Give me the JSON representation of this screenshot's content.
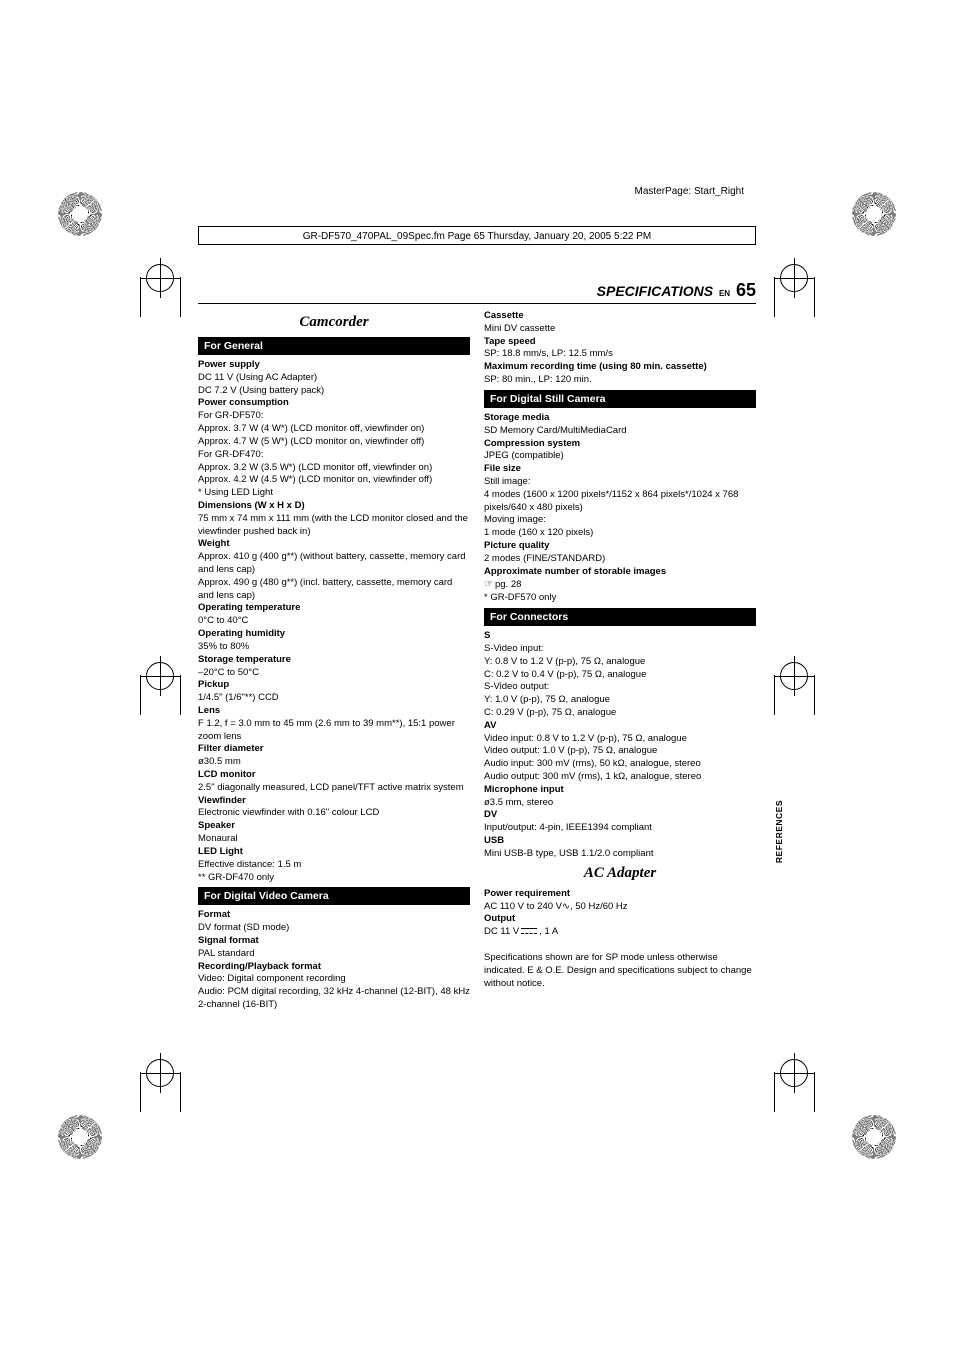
{
  "print_marks": {
    "masterpage_label": "MasterPage: Start_Right",
    "header_line": "GR-DF570_470PAL_09Spec.fm  Page 65  Thursday, January 20, 2005  5:22 PM"
  },
  "running_head": {
    "title": "SPECIFICATIONS",
    "lang": "EN",
    "page": "65"
  },
  "sidebar": "REFERENCES",
  "left": {
    "section_title": "Camcorder",
    "general_bar": "For General",
    "general": {
      "power_supply_h": "Power supply",
      "power_supply_1": "DC 11 V (Using AC Adapter)",
      "power_supply_2": "DC 7.2 V (Using battery pack)",
      "power_consumption_h": "Power consumption",
      "pc_1": "For GR-DF570:",
      "pc_2": "Approx. 3.7 W (4 W*) (LCD monitor off, viewfinder on)",
      "pc_3": "Approx. 4.7 W (5 W*) (LCD monitor on, viewfinder off)",
      "pc_4": "For GR-DF470:",
      "pc_5": "Approx. 3.2 W (3.5 W*) (LCD monitor off, viewfinder on)",
      "pc_6": "Approx. 4.2 W (4.5 W*) (LCD monitor on, viewfinder off)",
      "pc_7": "*  Using LED Light",
      "dimensions_h": "Dimensions (W x H x D)",
      "dimensions_1": "75 mm x 74 mm x 111 mm (with the LCD monitor closed and the viewfinder pushed back in)",
      "weight_h": "Weight",
      "weight_1": "Approx. 410 g (400 g**) (without battery, cassette, memory card and lens cap)",
      "weight_2": "Approx. 490 g (480 g**) (incl. battery, cassette, memory card and lens cap)",
      "op_temp_h": "Operating temperature",
      "op_temp_1": "0°C to 40°C",
      "op_hum_h": "Operating humidity",
      "op_hum_1": "35% to 80%",
      "st_temp_h": "Storage temperature",
      "st_temp_1": "–20°C to 50°C",
      "pickup_h": "Pickup",
      "pickup_1": "1/4.5\" (1/6\"**) CCD",
      "lens_h": "Lens",
      "lens_1": "F 1.2, f = 3.0 mm to 45 mm (2.6 mm to 39 mm**), 15:1 power zoom lens",
      "filter_h": "Filter diameter",
      "filter_1": "ø30.5 mm",
      "lcd_h": "LCD monitor",
      "lcd_1": "2.5\" diagonally measured, LCD panel/TFT active matrix system",
      "vf_h": "Viewfinder",
      "vf_1": "Electronic viewfinder with 0.16\" colour LCD",
      "speaker_h": "Speaker",
      "speaker_1": "Monaural",
      "led_h": "LED Light",
      "led_1": "Effective distance: 1.5 m",
      "note_1": "** GR-DF470 only"
    },
    "dvc_bar": "For Digital Video Camera",
    "dvc": {
      "format_h": "Format",
      "format_1": "DV format (SD mode)",
      "signal_h": "Signal format",
      "signal_1": "PAL standard",
      "rec_h": "Recording/Playback format",
      "rec_1": "Video: Digital component recording",
      "rec_2": "Audio: PCM digital recording, 32 kHz 4-channel (12-BIT), 48 kHz 2-channel (16-BIT)"
    }
  },
  "right": {
    "dvc_cont": {
      "cassette_h": "Cassette",
      "cassette_1": "Mini DV cassette",
      "tape_h": "Tape speed",
      "tape_1": "SP: 18.8 mm/s, LP: 12.5 mm/s",
      "max_h": "Maximum recording time (using 80 min. cassette)",
      "max_1": "SP: 80 min., LP: 120 min."
    },
    "dsc_bar": "For Digital Still Camera",
    "dsc": {
      "storage_h": "Storage media",
      "storage_1": "SD Memory Card/MultiMediaCard",
      "comp_h": "Compression system",
      "comp_1": "JPEG (compatible)",
      "file_h": "File size",
      "file_1": "Still image:",
      "file_2": "4 modes (1600 x 1200 pixels*/1152 x 864 pixels*/1024 x 768 pixels/640 x 480 pixels)",
      "file_3": "Moving image:",
      "file_4": "1 mode (160 x 120 pixels)",
      "pq_h": "Picture quality",
      "pq_1": "2 modes (FINE/STANDARD)",
      "approx_h": "Approximate number of storable images",
      "approx_1": "pg. 28",
      "note_1": "*  GR-DF570 only"
    },
    "conn_bar": "For Connectors",
    "conn": {
      "s_h": "S",
      "s_1": "S-Video input:",
      "s_2": "Y: 0.8 V to 1.2 V (p-p), 75 Ω, analogue",
      "s_3": "C: 0.2 V to 0.4 V (p-p), 75 Ω, analogue",
      "s_4": "S-Video output:",
      "s_5": "Y: 1.0 V (p-p), 75 Ω, analogue",
      "s_6": "C: 0.29 V (p-p), 75 Ω, analogue",
      "av_h": "AV",
      "av_1": "Video input: 0.8 V to 1.2 V (p-p), 75 Ω, analogue",
      "av_2": "Video output: 1.0 V (p-p), 75 Ω, analogue",
      "av_3": "Audio input: 300 mV (rms), 50 kΩ, analogue, stereo",
      "av_4": "Audio output: 300 mV (rms), 1 kΩ, analogue, stereo",
      "mic_h": "Microphone input",
      "mic_1": "ø3.5 mm, stereo",
      "dv_h": "DV",
      "dv_1": "Input/output: 4-pin, IEEE1394 compliant",
      "usb_h": "USB",
      "usb_1": "Mini USB-B type, USB 1.1/2.0 compliant"
    },
    "ac_title": "AC Adapter",
    "ac": {
      "pr_h": "Power requirement",
      "pr_1_a": "AC 110 V to 240 V",
      "pr_1_b": ", 50 Hz/60 Hz",
      "out_h": "Output",
      "out_1_a": "DC 11 V",
      "out_1_b": ", 1 A"
    },
    "disclaimer": "Specifications shown are for SP mode unless otherwise indicated. E & O.E. Design and specifications subject to change without notice."
  }
}
